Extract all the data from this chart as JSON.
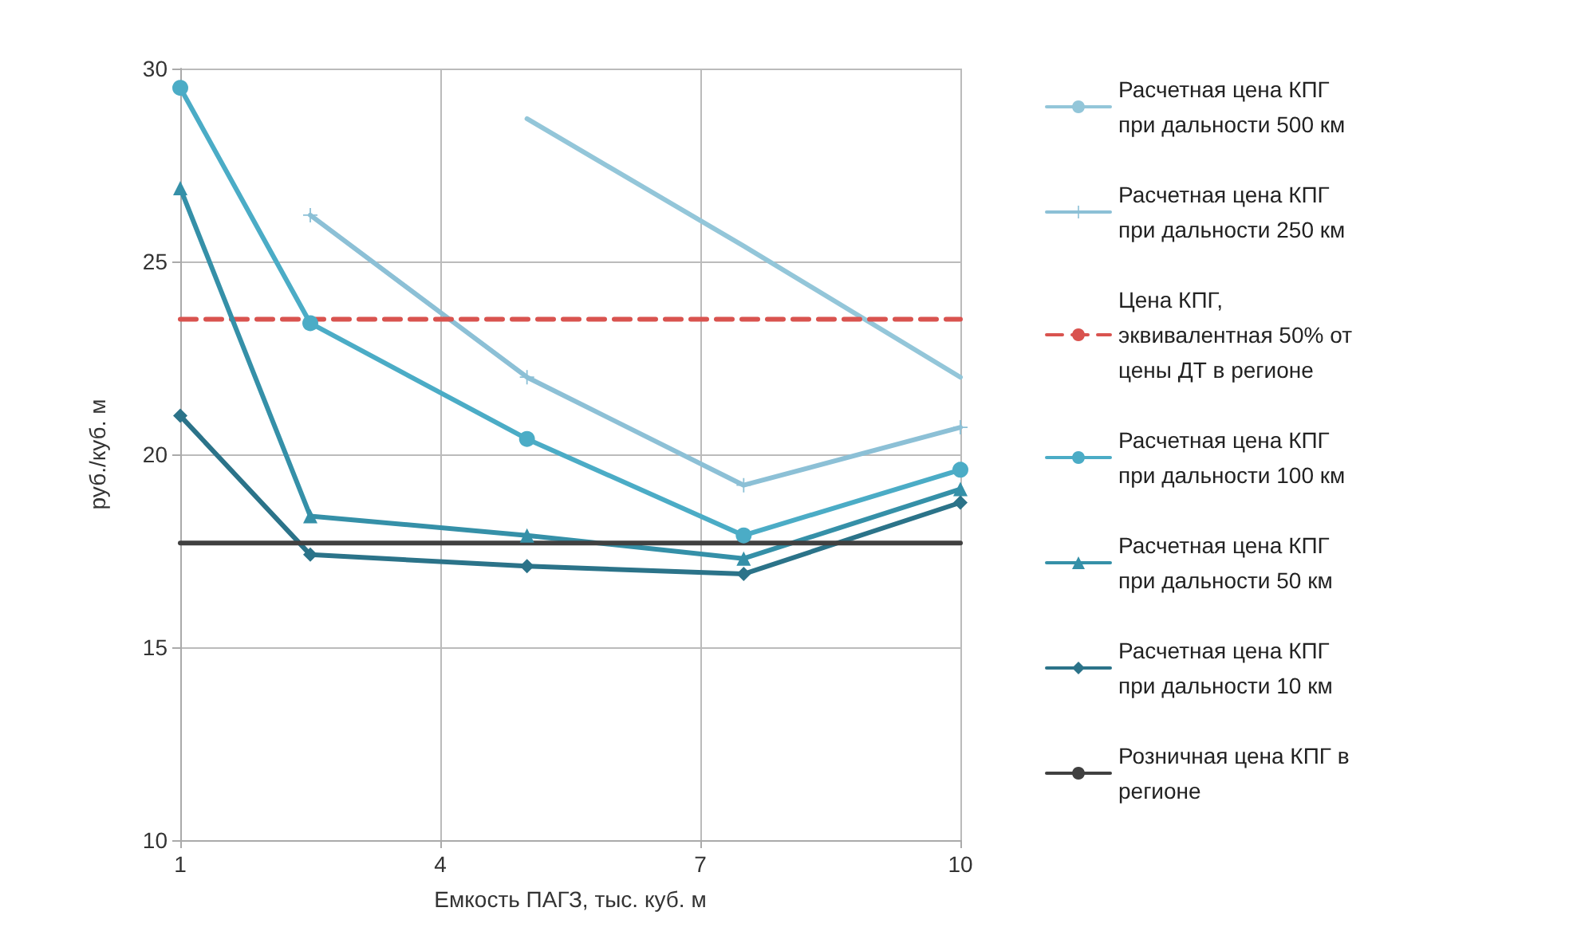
{
  "chart_data": {
    "type": "line",
    "x": [
      1,
      2.5,
      5,
      7.5,
      10
    ],
    "xlabel": "Емкость ПАГЗ, тыс. куб. м",
    "ylabel": "руб./куб. м",
    "xlim": [
      1,
      10
    ],
    "xticks": [
      1,
      4,
      7,
      10
    ],
    "ylim": [
      10,
      30
    ],
    "yticks": [
      10,
      15,
      20,
      25,
      30
    ],
    "grid": true,
    "legend": "right",
    "series": [
      {
        "name": "Расчетная цена КПГ при дальности 500 км",
        "color": "#93c6d9",
        "marker": "none",
        "values": [
          null,
          null,
          28.7,
          25.4,
          22.0
        ]
      },
      {
        "name": "Расчетная цена КПГ при дальности 250 км",
        "color": "#8cc0d6",
        "marker": "cross",
        "values": [
          null,
          26.2,
          22.0,
          19.2,
          20.7
        ]
      },
      {
        "name": "Цена КПГ, эквивалентная 50% от цены ДТ в регионе",
        "color": "#d9534f",
        "marker": "none",
        "line_style": "dashed",
        "values": [
          23.5,
          23.5,
          23.5,
          23.5,
          23.5
        ]
      },
      {
        "name": "Расчетная цена КПГ при дальности 100 км",
        "color": "#4bacc6",
        "marker": "circle",
        "values": [
          29.5,
          23.4,
          20.4,
          17.9,
          19.6
        ]
      },
      {
        "name": "Расчетная цена КПГ при дальности 50 км",
        "color": "#3590a8",
        "marker": "triangle",
        "values": [
          26.9,
          18.4,
          17.9,
          17.3,
          19.1
        ]
      },
      {
        "name": "Расчетная цена КПГ при дальности 10 км",
        "color": "#2b7389",
        "marker": "diamond",
        "values": [
          21.0,
          17.4,
          17.1,
          16.9,
          18.75
        ]
      },
      {
        "name": "Розничная цена КПГ в регионе",
        "color": "#404040",
        "marker": "none",
        "values": [
          17.7,
          17.7,
          17.7,
          17.7,
          17.7
        ]
      }
    ]
  }
}
